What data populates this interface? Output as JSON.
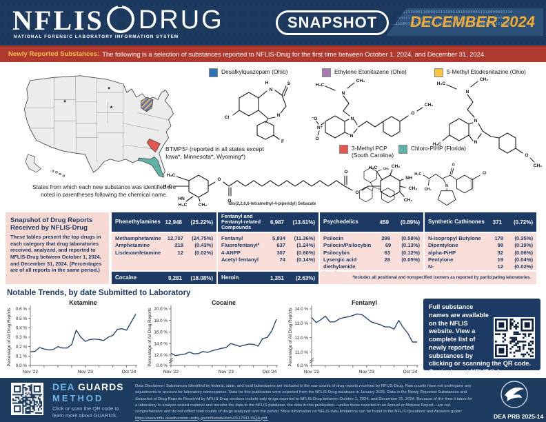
{
  "colors": {
    "navy": "#1c3a64",
    "banner_red": "#b0392f",
    "gold": "#f3ab2e",
    "pink": "#f7d9d4",
    "legend_blue": "#2e74b5",
    "legend_purple": "#a87cb0",
    "legend_yellow": "#f9c440",
    "legend_red": "#e45750",
    "legend_teal": "#5fb3a9",
    "chart_line": "#27476f"
  },
  "header": {
    "brand": "NFLIS",
    "brand_word": "DRUG",
    "brand_sub": "NATIONAL FORENSIC LABORATORY INFORMATION SYSTEM",
    "badge": "SNAPSHOT",
    "issue": "DECEMBER 2024",
    "binary_rows": [
      "100111110001100001111100110101000011110000001110",
      "100011111000011000011010011110001101011110001101",
      "111000111000000111101010011001110000010011111000"
    ]
  },
  "banner": {
    "label": "Newly Reported Substances:",
    "text": "The following is a selection of substances reported to NFLIS-Drug for the first time between October 1, 2024, and December 31, 2024."
  },
  "map": {
    "marker": "*",
    "caption_line1": "States from which each new substance was identified are",
    "caption_line2": "noted in parentheses following the chemical name."
  },
  "legend": [
    {
      "name": "Desalkylquazepam (Ohio)",
      "color": "#2e74b5"
    },
    {
      "name": "Ethylene Etonitazene (Ohio)",
      "color": "#a87cb0"
    },
    {
      "name": "5-Methyl Etodesnitazine (Ohio)",
      "color": "#f9c440"
    },
    {
      "line1": "3-Methyl PCP",
      "line2": "(South Carolina)",
      "color": "#e45750"
    },
    {
      "name": "Chloro-PiHP (Florida)",
      "color": "#5fb3a9"
    }
  ],
  "btmps": {
    "line1": "BTMPS¹ (reported in all states except",
    "line2": "Iowa*, Minnesota*, Wyoming*)",
    "footnote": "¹Bis(2,2,6,6-tetramethyl-4-piperidyl) Sebacate"
  },
  "structures": {
    "s1": {
      "name": "Desalkylquazepam",
      "labels": [
        "H",
        "N",
        "S",
        "Cl",
        "N",
        "F"
      ]
    },
    "s2": {
      "name": "Ethylene Etonitazene",
      "labels": [
        "H₃C",
        "CH₃",
        "N",
        "⁻O",
        "N⁺",
        "O",
        "N",
        "N",
        "O",
        "CH₃"
      ]
    },
    "s3": {
      "name": "5-Methyl Etodesnitazine",
      "labels": [
        "H₃C",
        "CH₃",
        "N",
        "H₃C",
        "N",
        "N",
        "O",
        "CH₃"
      ]
    },
    "s4": {
      "name": "BTMPS",
      "labels": [
        "H₃C",
        "H₃C",
        "HN",
        "H₃C",
        "CH₃",
        "O",
        "O",
        "O",
        "O",
        "H₃C",
        "CH₃",
        "NH",
        "CH₃",
        "CH₃"
      ]
    },
    "s5": {
      "name": "3-Methyl PCP",
      "labels": [
        "CH₃",
        "N"
      ]
    },
    "s6": {
      "name": "Chloro-PiHP",
      "labels": [
        "H₃C",
        "CH₃",
        "N",
        "O",
        "Cl"
      ]
    }
  },
  "snapshot": {
    "title": "Snapshot of Drug Reports Received by NFLIS-Drug",
    "description": "These tables present the top drugs in each category that drug laboratories received, analyzed, and reported to NFLIS-Drug between October 1, 2024, and December 31, 2024. (Percentages are of all reports in the same period.)",
    "columns": [
      {
        "header": "Phenethylamines",
        "count": "12,948",
        "pct": "(25.22%)",
        "rows": [
          [
            "Methamphetamine",
            "12,707",
            "(24.75%)"
          ],
          [
            "Amphetamine",
            "219",
            "(0.43%)"
          ],
          [
            "Lisdexamfetamine",
            "12",
            "(0.02%)"
          ]
        ],
        "footer": {
          "name": "Cocaine",
          "count": "9,281",
          "pct": "(18.08%)"
        }
      },
      {
        "header": "Fentanyl and Fentanyl-related Compounds",
        "count": "6,987",
        "pct": "(13.61%)",
        "rows": [
          [
            "Fentanyl",
            "5,834",
            "(11.36%)"
          ],
          [
            "Fluorofentanyl²",
            "637",
            "(1.24%)"
          ],
          [
            "4-ANPP",
            "307",
            "(0.60%)"
          ],
          [
            "Acetyl fentanyl",
            "74",
            "(0.14%)"
          ]
        ],
        "footer": {
          "name": "Heroin",
          "count": "1,351",
          "pct": "(2.63%)"
        }
      },
      {
        "header": "Psychedelics",
        "count": "459",
        "pct": "(0.89%)",
        "rows": [
          [
            "Psilocin",
            "299",
            "(0.58%)"
          ],
          [
            "Psilocin/Psilocybin",
            "69",
            "(0.13%)"
          ],
          [
            "Psilocybin",
            "63",
            "(0.12%)"
          ],
          [
            "Lysergic acid diethylamide (LSD)",
            "28",
            "(0.05%)"
          ]
        ]
      },
      {
        "header": "Synthetic Cathinones",
        "count": "371",
        "pct": "(0.72%)",
        "rows": [
          [
            "N-isopropyl Butylone",
            "178",
            "(0.35%)"
          ],
          [
            "Dipentylone",
            "98",
            "(0.19%)"
          ],
          [
            "alpha-PiHP",
            "32",
            "(0.06%)"
          ],
          [
            "Pentylone",
            "19",
            "(0.04%)"
          ],
          [
            "N-Cyclohexylmethylone",
            "12",
            "(0.02%)"
          ]
        ]
      }
    ],
    "footnote": "²Includes all positional and nonspecified isomers as reported by participating laboratories."
  },
  "trends": {
    "title": "Notable Trends, by date Submitted to Laboratory"
  },
  "chart_data": [
    {
      "type": "line",
      "title": "Ketamine",
      "ylabel": "Percentage of All Drug Reports",
      "x_range": [
        "Nov 2022",
        "Oct 2024"
      ],
      "x_unit": "month",
      "x_tick_labels": [
        {
          "index": 0,
          "label": "Nov '22"
        },
        {
          "index": 12,
          "label": "Nov '23"
        },
        {
          "index": 23,
          "label": "Oct '24"
        }
      ],
      "values": [
        0.145,
        0.15,
        0.19,
        0.175,
        0.165,
        0.17,
        0.2,
        0.185,
        0.185,
        0.22,
        0.375,
        0.3,
        0.255,
        0.275,
        0.28,
        0.275,
        0.265,
        0.3,
        0.32,
        0.385,
        0.39,
        0.375,
        0.46,
        0.545
      ],
      "y_ticks": [
        0,
        0.1,
        0.2,
        0.3,
        0.4,
        0.5,
        0.6
      ],
      "band": [
        0,
        0.6
      ],
      "axis_break": false,
      "zero_label": "0.0 %",
      "line_color": "#27476f",
      "grid": false
    },
    {
      "type": "line",
      "title": "Cocaine",
      "ylabel": "Percentage of All Drug Reports",
      "x_range": [
        "Nov 2022",
        "Oct 2024"
      ],
      "x_unit": "month",
      "x_tick_labels": [
        {
          "index": 0,
          "label": "Nov '22"
        },
        {
          "index": 12,
          "label": "Nov '23"
        },
        {
          "index": 23,
          "label": "Oct '24"
        }
      ],
      "values": [
        12.3,
        11.9,
        12.05,
        12.15,
        12.5,
        12.2,
        12.25,
        12.6,
        12.45,
        12.75,
        12.95,
        13.15,
        13.3,
        14.0,
        13.75,
        13.5,
        13.7,
        13.9,
        13.85,
        13.55,
        14.85,
        15.05,
        16.2,
        18.2
      ],
      "y_ticks": [
        12,
        14,
        16,
        18,
        20
      ],
      "band": [
        11.5,
        20
      ],
      "axis_break": true,
      "zero_label": "0.0 %",
      "line_color": "#27476f",
      "grid": false
    },
    {
      "type": "line",
      "title": "Fentanyl",
      "ylabel": "Percentage of All Drug Reports",
      "x_range": [
        "Nov 2022",
        "Oct 2024"
      ],
      "x_unit": "month",
      "x_tick_labels": [
        {
          "index": 0,
          "label": "Nov '22"
        },
        {
          "index": 12,
          "label": "Nov '23"
        },
        {
          "index": 23,
          "label": "Oct '24"
        }
      ],
      "values": [
        13.4,
        13.05,
        13.25,
        13.5,
        13.1,
        13.1,
        13.3,
        13.4,
        13.45,
        13.55,
        13.65,
        13.6,
        13.35,
        13.1,
        13.0,
        12.9,
        12.75,
        12.75,
        12.6,
        13.2,
        12.7,
        12.3,
        11.7,
        11.7
      ],
      "y_ticks": [
        11,
        12,
        13,
        14
      ],
      "band": [
        10.6,
        14
      ],
      "axis_break": true,
      "zero_label": "0.0 %",
      "line_color": "#27476f",
      "grid": false
    }
  ],
  "info_box": {
    "text": "Full substance names are available on the NFLIS website. View a complete list of newly reported substances by clicking or scanning the QR code. Contact us at ",
    "link": "NFLIS@dea.gov",
    "after": "."
  },
  "footer": {
    "guards_dea": "DEA",
    "guards_word": "GUARDS",
    "guards_method": "METHOD",
    "guards_caption": "Click or scan the QR code to learn more about GUARDS.",
    "disclaimer": "Data Disclaimer: Substances identified by federal, state, and local laboratories are included in the raw counts of drug reports received by NFLIS-Drug. Raw counts have not undergone any adjustments to account for laboratory nonresponse. Data for this publication were exported from the NFLIS-Drug database in January 2025. Data in the Newly Reported Substances and Snapshot of Drug Reports Received by NFLIS-Drug sections include only drugs reported to NFLIS-Drug between October 1, 2024, and December 31, 2024. Because of the time it takes for a laboratory to analyze seized material and transfer the data to the NFLIS database, the data in this publication—unlike those reported in an Annual or Midyear Report—are not comprehensive and do not reflect total counts of drugs analyzed over the period. More information on NFLIS data limitations can be found in the NFLIS Questions and Answers guide: ",
    "disclaimer_link": "https://www.nflis.deadiversion.usdoj.gov/nflisdata/docs/2k17NFLISQA.pdf.",
    "prb": "DEA PRB 2025-14"
  }
}
